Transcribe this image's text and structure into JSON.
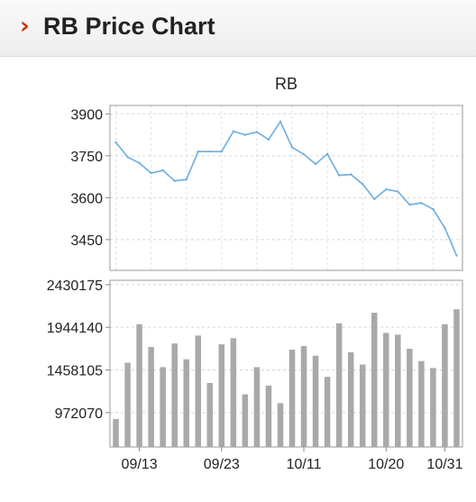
{
  "header": {
    "icon": "chevron-right-icon",
    "title": "RB Price Chart",
    "accent_color": "#cc3300"
  },
  "chart_data": [
    {
      "type": "line",
      "title": "RB",
      "color": "#6aaee0",
      "grid": true,
      "ylim": [
        3340,
        3930
      ],
      "y_ticks": [
        3900,
        3750,
        3600,
        3450
      ],
      "values": [
        3798,
        3745,
        3724,
        3688,
        3698,
        3660,
        3665,
        3765,
        3765,
        3765,
        3837,
        3825,
        3835,
        3808,
        3872,
        3780,
        3755,
        3720,
        3757,
        3680,
        3683,
        3649,
        3595,
        3630,
        3622,
        3575,
        3581,
        3559,
        3492,
        3393
      ]
    },
    {
      "type": "bar",
      "title": "",
      "color": "#a9a9a9",
      "grid": true,
      "ylim": [
        580000,
        2480000
      ],
      "y_ticks": [
        2430175,
        1944140,
        1458105,
        972070
      ],
      "x_tick_labels": [
        "09/13",
        "09/23",
        "10/11",
        "10/20",
        "10/31"
      ],
      "x_tick_index": [
        2,
        9,
        16,
        23,
        28
      ],
      "values": [
        900000,
        1540000,
        1980000,
        1720000,
        1490000,
        1760000,
        1580000,
        1850000,
        1310000,
        1750000,
        1820000,
        1180000,
        1490000,
        1280000,
        1080000,
        1690000,
        1730000,
        1620000,
        1380000,
        1990000,
        1660000,
        1520000,
        2110000,
        1880000,
        1860000,
        1700000,
        1560000,
        1480000,
        1980000,
        2150000
      ]
    }
  ]
}
